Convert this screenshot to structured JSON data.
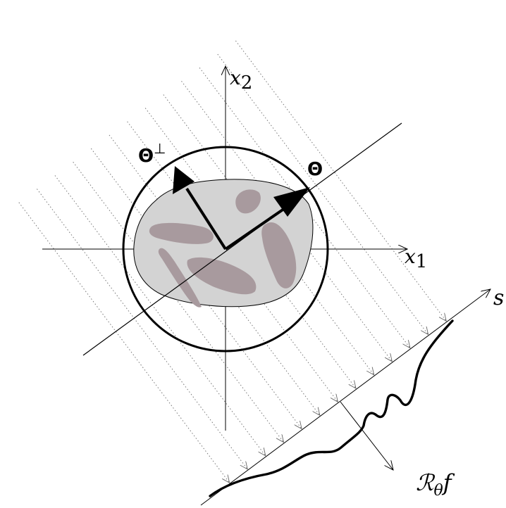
{
  "labels": {
    "x1_main": "x",
    "x1_sub": "1",
    "x2_main": "x",
    "x2_sub": "2",
    "theta": "Θ",
    "theta_perp_main": "Θ",
    "theta_perp_sup": "⊥",
    "s": "s",
    "radon_R": "ℛ",
    "radon_sub": "θ",
    "radon_f": "f"
  },
  "colors": {
    "ink": "#000000",
    "object_fill": "#d3d3d3",
    "inclusion_fill": "#a89a9e",
    "ray": "#7a7a7a"
  }
}
